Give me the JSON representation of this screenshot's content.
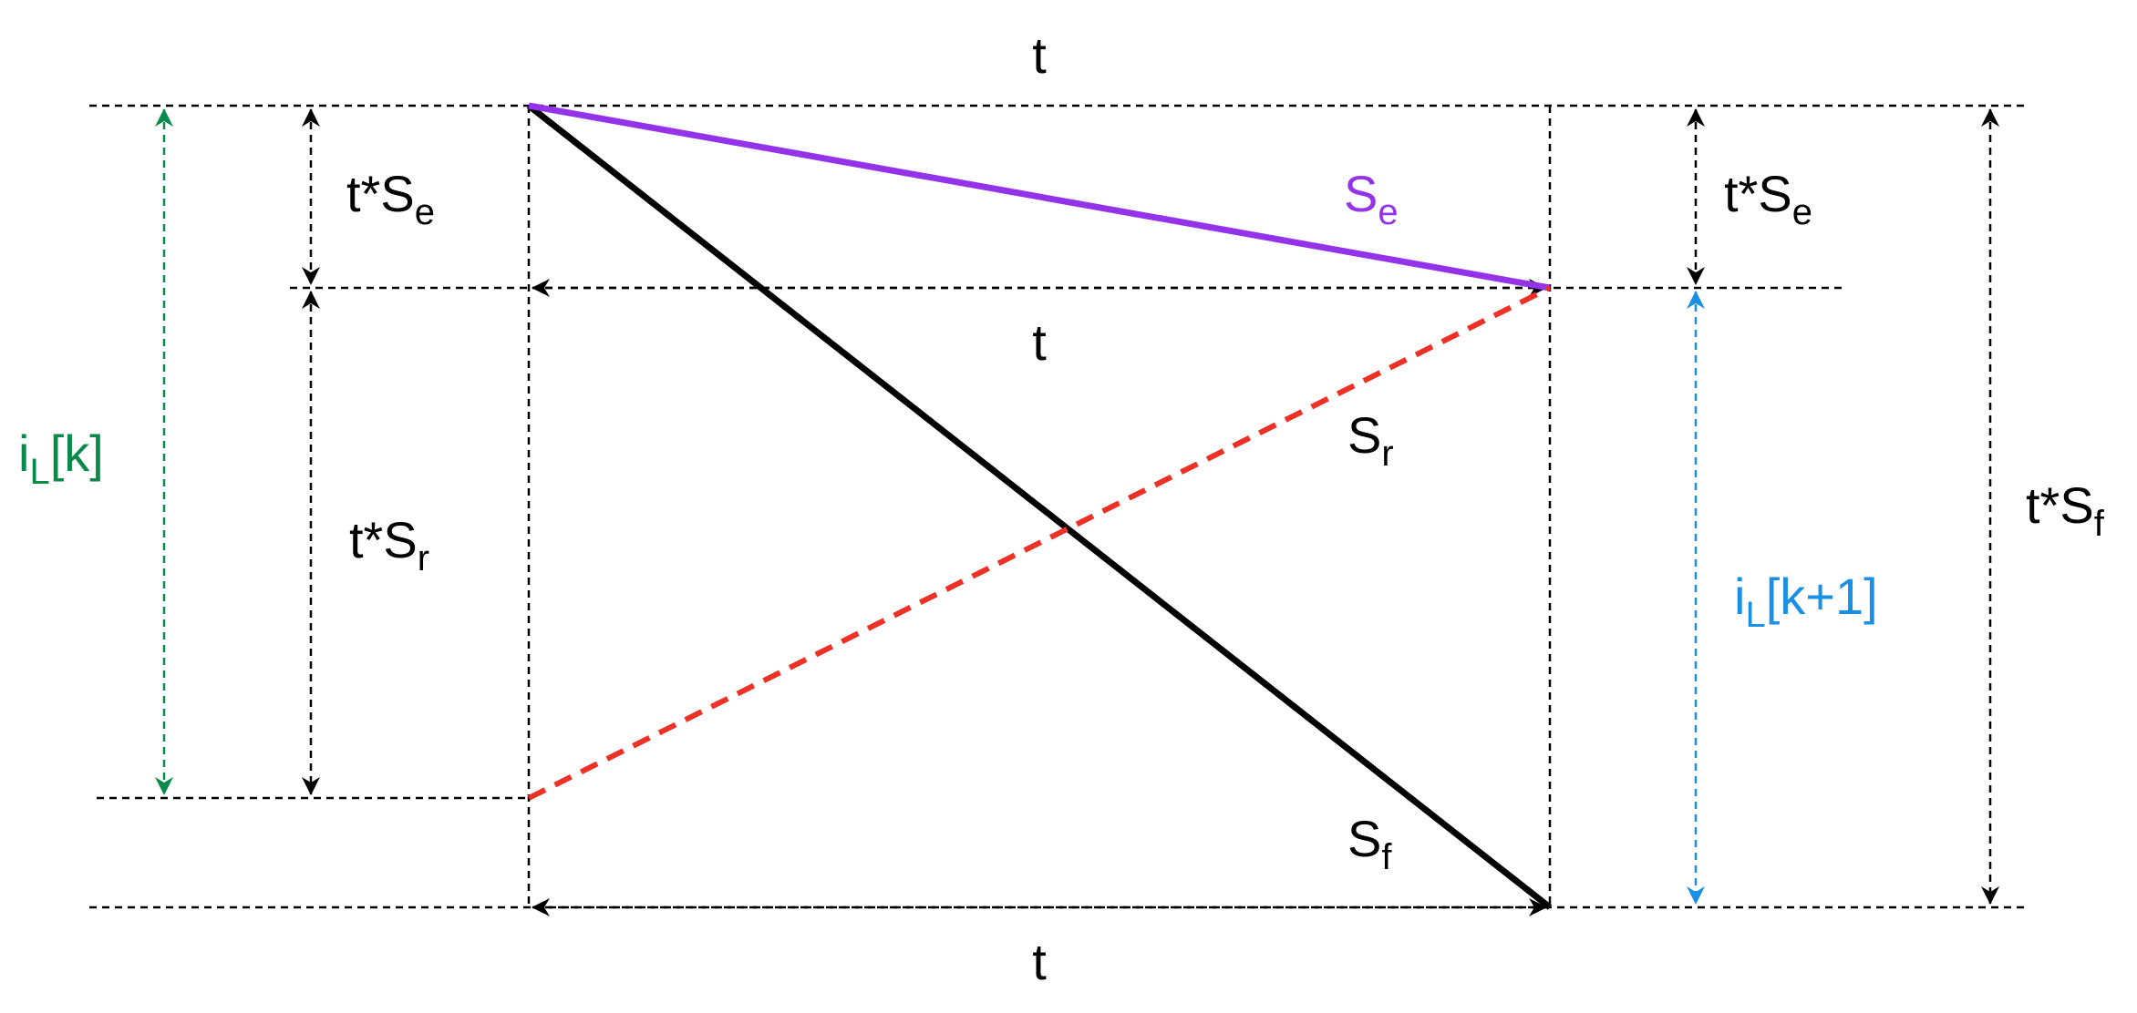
{
  "colors": {
    "black": "#000000",
    "purple": "#9333ea",
    "red": "#ee3124",
    "green": "#0a8a4a",
    "blue": "#1a8fe3"
  },
  "labels": {
    "t_top": "t",
    "t_mid": "t",
    "t_bottom": "t",
    "tSe_left": {
      "base": "t*S",
      "sub": "e"
    },
    "tSr_left": {
      "base": "t*S",
      "sub": "r"
    },
    "tSe_right": {
      "base": "t*S",
      "sub": "e"
    },
    "tSf_right": {
      "base": "t*S",
      "sub": "f"
    },
    "Se": {
      "base": "S",
      "sub": "e"
    },
    "Sr": {
      "base": "S",
      "sub": "r"
    },
    "Sf": {
      "base": "S",
      "sub": "f"
    },
    "iLk": {
      "base": "i",
      "sub": "L",
      "rest": "[k]"
    },
    "iLk1": {
      "base": "i",
      "sub": "L",
      "rest": "[k+1]"
    }
  }
}
